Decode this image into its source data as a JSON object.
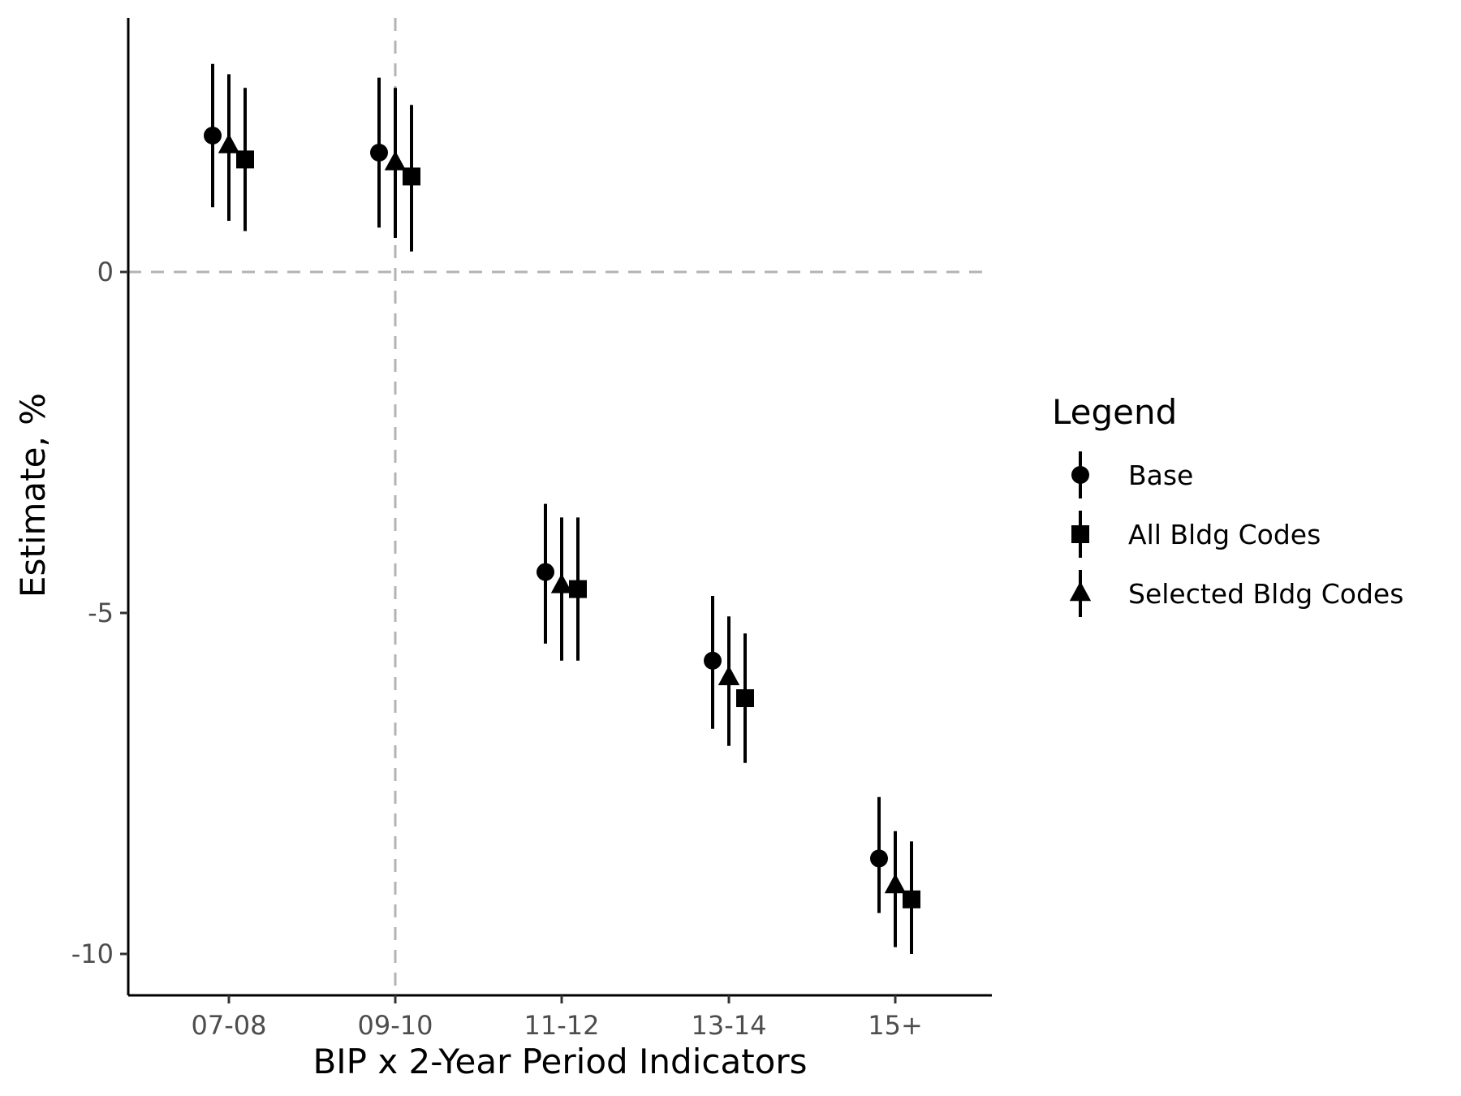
{
  "chart_data": {
    "type": "scatter",
    "xlabel": "BIP x 2-Year Period Indicators",
    "ylabel": "Estimate, %",
    "categories": [
      "07-08",
      "09-10",
      "11-12",
      "13-14",
      "15+"
    ],
    "ylim": [
      -10.6,
      3.7
    ],
    "yticks": [
      0,
      -5,
      -10
    ],
    "ytick_labels": [
      "0",
      "-5",
      "-10"
    ],
    "reference_lines": {
      "y": 0,
      "x_category": "09-10",
      "style": "dashed",
      "color": "#b3b3b3"
    },
    "grid": false,
    "legend": {
      "title": "Legend",
      "position": "right"
    },
    "series": [
      {
        "name": "Base",
        "marker": "circle",
        "estimate": [
          2.0,
          1.75,
          -4.4,
          -5.7,
          -8.6
        ],
        "lower": [
          0.95,
          0.65,
          -5.45,
          -6.7,
          -9.4
        ],
        "upper": [
          3.05,
          2.85,
          -3.4,
          -4.75,
          -7.7
        ]
      },
      {
        "name": "All Bldg Codes",
        "marker": "square",
        "estimate": [
          1.65,
          1.4,
          -4.65,
          -6.25,
          -9.2
        ],
        "lower": [
          0.6,
          0.3,
          -5.7,
          -7.2,
          -10.0
        ],
        "upper": [
          2.7,
          2.45,
          -3.6,
          -5.3,
          -8.35
        ]
      },
      {
        "name": "Selected Bldg Codes",
        "marker": "triangle",
        "estimate": [
          1.85,
          1.6,
          -4.6,
          -5.95,
          -9.0
        ],
        "lower": [
          0.75,
          0.5,
          -5.7,
          -6.95,
          -9.9
        ],
        "upper": [
          2.9,
          2.7,
          -3.6,
          -5.05,
          -8.2
        ]
      }
    ]
  }
}
